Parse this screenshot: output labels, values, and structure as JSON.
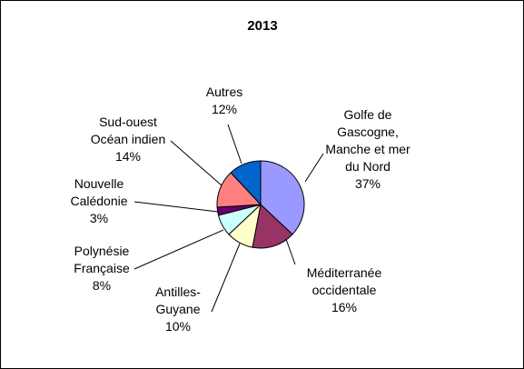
{
  "chart_data": {
    "type": "pie",
    "title": "2013",
    "start_angle_deg": 0,
    "direction": "clockwise",
    "legend": "none",
    "slices": [
      {
        "label_lines": [
          "Golfe de",
          "Gascogne,",
          "Manche et mer",
          "du Nord"
        ],
        "pct_label": "37%",
        "value": 37,
        "color": "#9999ff"
      },
      {
        "label_lines": [
          "Méditerranée",
          "occidentale"
        ],
        "pct_label": "16%",
        "value": 16,
        "color": "#993366"
      },
      {
        "label_lines": [
          "Antilles-",
          "Guyane"
        ],
        "pct_label": "10%",
        "value": 10,
        "color": "#ffffcc"
      },
      {
        "label_lines": [
          "Polynésie",
          "Française"
        ],
        "pct_label": "8%",
        "value": 8,
        "color": "#ccffff"
      },
      {
        "label_lines": [
          "Nouvelle",
          "Calédonie"
        ],
        "pct_label": "3%",
        "value": 3,
        "color": "#660066"
      },
      {
        "label_lines": [
          "Sud-ouest",
          "Océan indien"
        ],
        "pct_label": "14%",
        "value": 14,
        "color": "#ff8080"
      },
      {
        "label_lines": [
          "Autres"
        ],
        "pct_label": "12%",
        "value": 12,
        "color": "#0066cc"
      }
    ]
  }
}
